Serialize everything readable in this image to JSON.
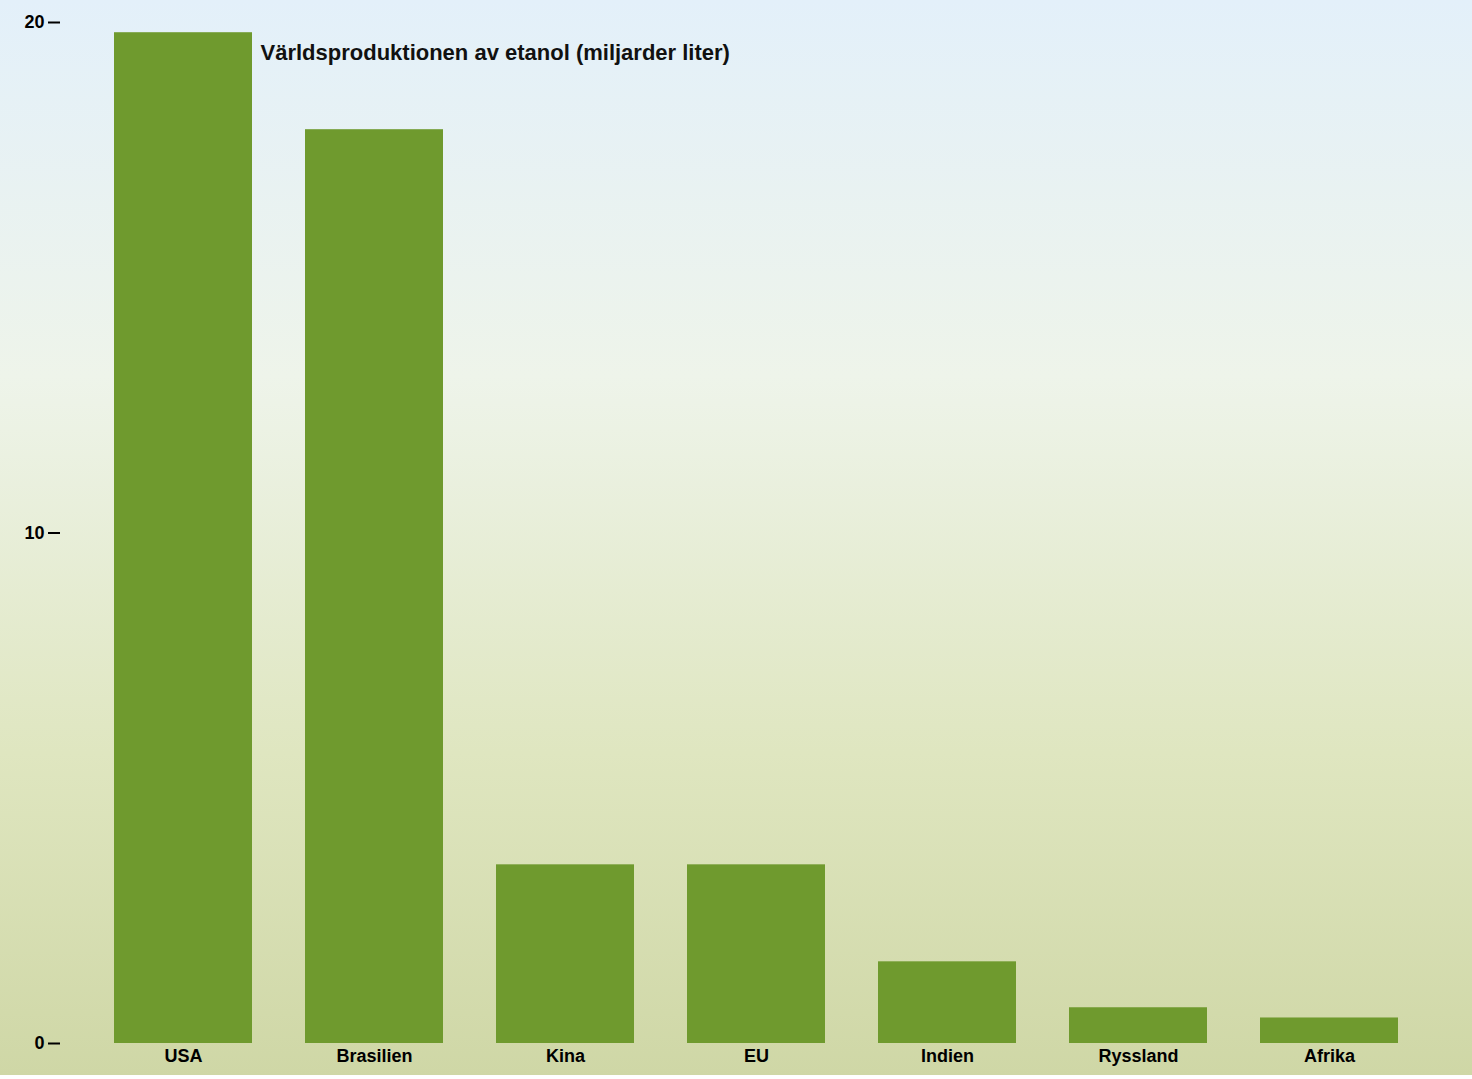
{
  "chart_data": {
    "type": "bar",
    "title": "Världsproduktionen av etanol (miljarder liter)",
    "categories": [
      "USA",
      "Brasilien",
      "Kina",
      "EU",
      "Indien",
      "Ryssland",
      "Afrika"
    ],
    "values": [
      19.8,
      17.9,
      3.5,
      3.5,
      1.6,
      0.7,
      0.5
    ],
    "color": "#6f9a2e",
    "ylim": [
      0,
      20
    ],
    "yticks": [
      0,
      10,
      20
    ],
    "grid": false
  }
}
